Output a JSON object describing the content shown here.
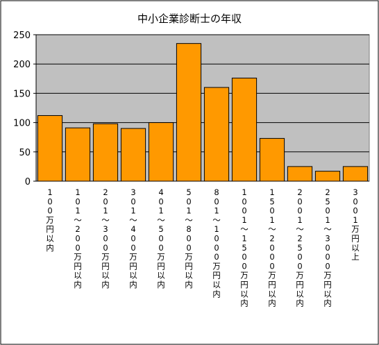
{
  "chart_data": {
    "type": "bar",
    "title": "中小企業診断士の年収",
    "categories": [
      "100万円以内",
      "101〜200万円以内",
      "201〜300万円以内",
      "301〜400万円以内",
      "401〜500万円以内",
      "501〜800万円以内",
      "801〜1000万円以内",
      "1001〜1500万円以内",
      "1501〜2000万円以内",
      "2001〜2500万円以内",
      "2501〜3000万円以内",
      "3001万円以上"
    ],
    "series": [
      {
        "values": [
          112,
          91,
          98,
          90,
          100,
          235,
          160,
          176,
          73,
          25,
          17,
          25
        ]
      }
    ],
    "ylim": [
      0,
      250
    ],
    "yticks": [
      0,
      50,
      100,
      150,
      200,
      250
    ],
    "grid": true,
    "colors": {
      "bar": "#FF9900",
      "bar_edge": "#000000",
      "plot_bg": "#C0C0C0",
      "grid": "#000000"
    }
  }
}
